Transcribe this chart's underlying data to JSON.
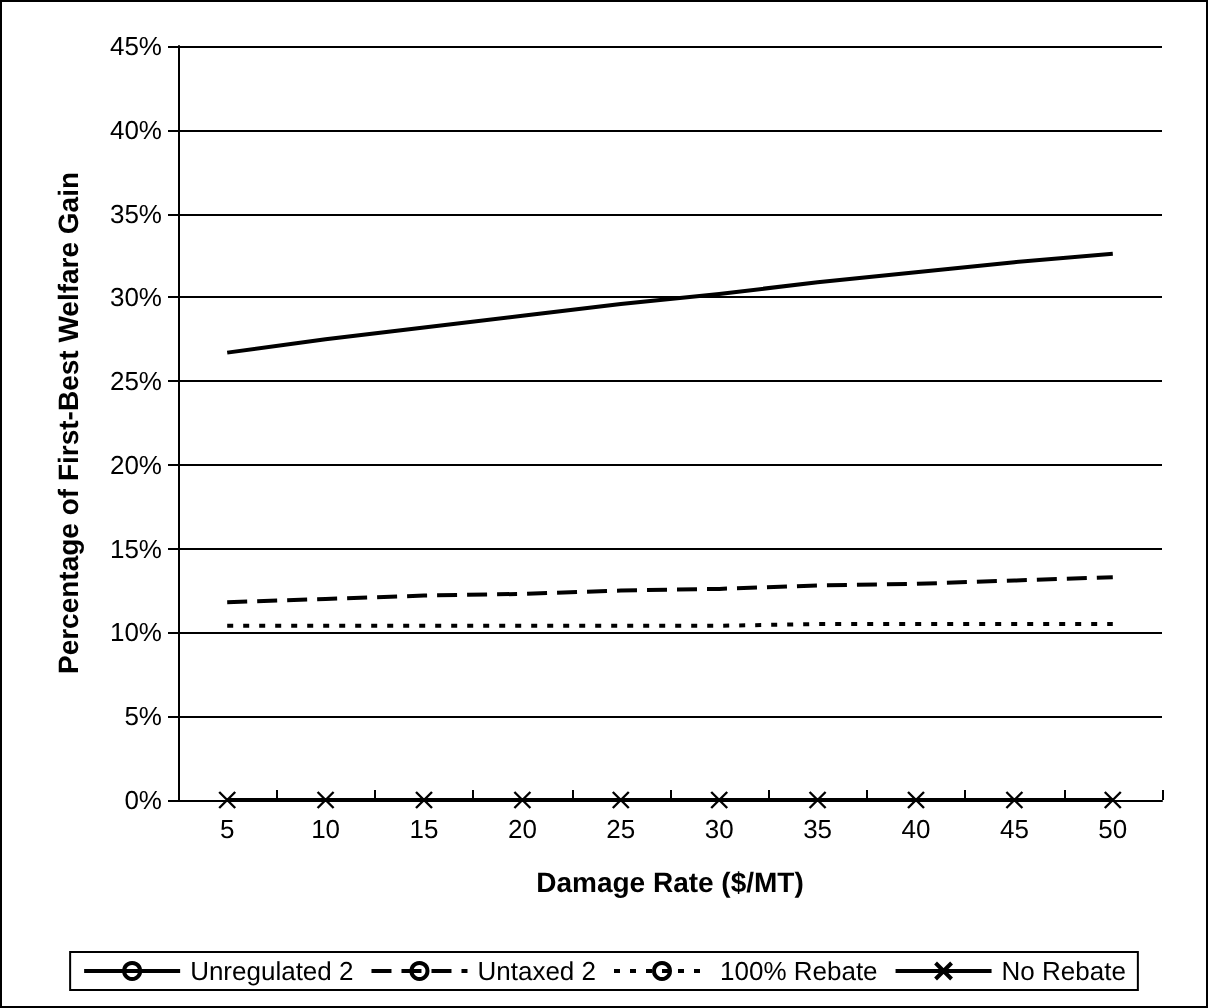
{
  "chart_data": {
    "type": "line",
    "xlabel": "Damage Rate ($/MT)",
    "ylabel": "Percentage of First-Best Welfare Gain",
    "categories": [
      "5",
      "10",
      "15",
      "20",
      "25",
      "30",
      "35",
      "40",
      "45",
      "50"
    ],
    "series": [
      {
        "name": "Unregulated 2",
        "color": "#000000",
        "line_style": "solid",
        "marker": "none",
        "values": [
          26.7,
          27.5,
          28.2,
          28.9,
          29.6,
          30.2,
          30.9,
          31.5,
          32.1,
          32.6
        ]
      },
      {
        "name": "Untaxed 2",
        "color": "#000000",
        "line_style": "dashed",
        "marker": "none",
        "values": [
          11.8,
          12.0,
          12.2,
          12.3,
          12.5,
          12.6,
          12.8,
          12.9,
          13.1,
          13.3
        ]
      },
      {
        "name": "100% Rebate",
        "color": "#000000",
        "line_style": "dotted",
        "marker": "none",
        "values": [
          10.4,
          10.4,
          10.4,
          10.4,
          10.4,
          10.4,
          10.5,
          10.5,
          10.5,
          10.5
        ]
      },
      {
        "name": "No Rebate",
        "color": "#000000",
        "line_style": "solid",
        "marker": "cross",
        "values": [
          0,
          0,
          0,
          0,
          0,
          0,
          0,
          0,
          0,
          0
        ]
      }
    ],
    "ylim": [
      0,
      45
    ],
    "yticks": [
      {
        "value": 0,
        "label": "0%"
      },
      {
        "value": 5,
        "label": "5%"
      },
      {
        "value": 10,
        "label": "10%"
      },
      {
        "value": 15,
        "label": "15%"
      },
      {
        "value": 20,
        "label": "20%"
      },
      {
        "value": 25,
        "label": "25%"
      },
      {
        "value": 30,
        "label": "30%"
      },
      {
        "value": 35,
        "label": "35%"
      },
      {
        "value": 40,
        "label": "40%"
      },
      {
        "value": 45,
        "label": "45%"
      }
    ],
    "grid": "y",
    "legend": "bottom"
  }
}
